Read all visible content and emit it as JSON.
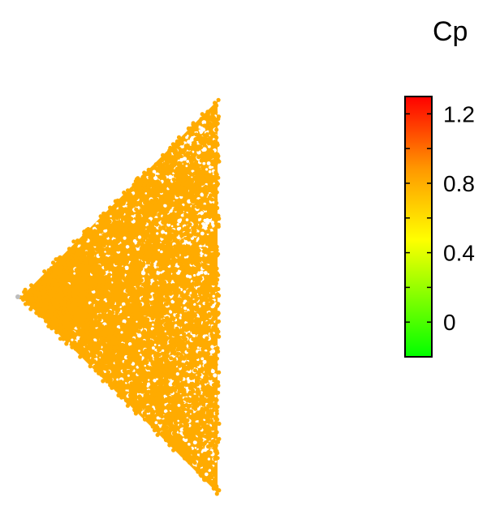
{
  "chart_data": {
    "type": "scatter",
    "title": "",
    "point_color": "#ffab00",
    "apex_point_color": "#bdbdbd",
    "shape": "triangle",
    "colorbar": {
      "title": "Cp",
      "min": -0.2,
      "max": 1.3,
      "ticks": [
        {
          "value": 0,
          "label": "0"
        },
        {
          "value": 0.4,
          "label": "0.4"
        },
        {
          "value": 0.8,
          "label": "0.8"
        },
        {
          "value": 1.2,
          "label": "1.2"
        }
      ],
      "minor_ticks": [
        0.2,
        0.6,
        1.0
      ],
      "gradient_colors": [
        "#00ff00",
        "#ffff00",
        "#ff9900",
        "#ff0000"
      ]
    }
  }
}
